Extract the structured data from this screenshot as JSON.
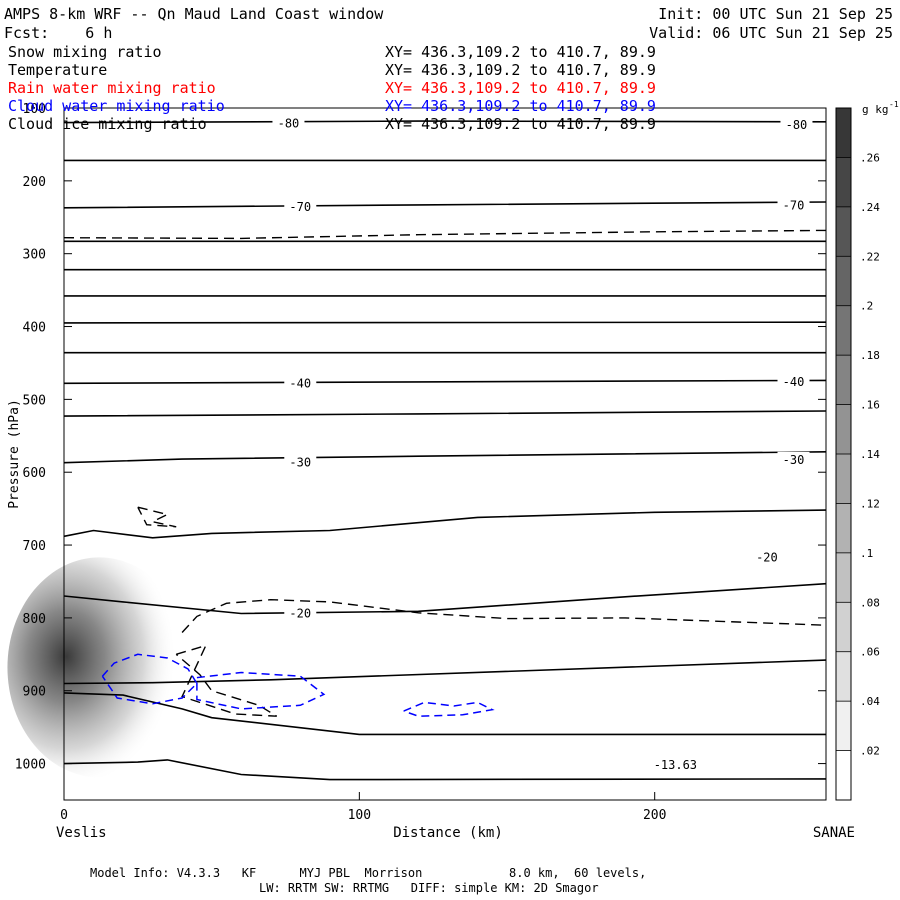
{
  "header": {
    "title": "AMPS 8-km WRF -- Qn Maud Land Coast window",
    "init": "Init: 00 UTC Sun 21 Sep 25",
    "fcst": "Fcst:    6 h",
    "valid": "Valid: 06 UTC Sun 21 Sep 25"
  },
  "fields": [
    {
      "name": "Snow mixing ratio",
      "xy": "XY= 436.3,109.2 to 410.7, 89.9",
      "color": "#000000"
    },
    {
      "name": "Temperature",
      "xy": "XY= 436.3,109.2 to 410.7, 89.9",
      "color": "#000000"
    },
    {
      "name": "Rain water mixing ratio",
      "xy": "XY= 436.3,109.2 to 410.7, 89.9",
      "color": "#ff0000"
    },
    {
      "name": "Cloud water mixing ratio",
      "xy": "XY= 436.3,109.2 to 410.7, 89.9",
      "color": "#0000ff"
    },
    {
      "name": "Cloud ice mixing ratio",
      "xy": "XY= 436.3,109.2 to 410.7, 89.9",
      "color": "#000000"
    }
  ],
  "footer": {
    "line1": "Model Info: V4.3.3   KF      MYJ PBL  Morrison            8.0 km,  60 levels,",
    "line2": "LW: RRTM SW: RRTMG   DIFF: simple KM: 2D Smagor"
  },
  "chart_data": {
    "type": "heatmap",
    "xlabel": "Distance (km)",
    "ylabel": "Pressure (hPa)",
    "xlim": [
      0,
      258
    ],
    "ylim": [
      1050,
      100
    ],
    "x_ticks": [
      "0",
      "100",
      "200"
    ],
    "x_tick_values": [
      0,
      100,
      200
    ],
    "y_ticks": [
      "100",
      "200",
      "300",
      "400",
      "500",
      "600",
      "700",
      "800",
      "900",
      "1000"
    ],
    "y_tick_values": [
      100,
      200,
      300,
      400,
      500,
      600,
      700,
      800,
      900,
      1000
    ],
    "left_endpoint": "Veslis",
    "right_endpoint": "SANAE",
    "colorbar": {
      "unit": "g kg",
      "unit_exp": "-1",
      "range": [
        0,
        0.28
      ],
      "tick_labels": [
        ".02",
        ".04",
        ".06",
        ".08",
        ".1",
        ".12",
        ".14",
        ".16",
        ".18",
        ".2",
        ".22",
        ".24",
        ".26"
      ],
      "tick_values": [
        0.02,
        0.04,
        0.06,
        0.08,
        0.1,
        0.12,
        0.14,
        0.16,
        0.18,
        0.2,
        0.22,
        0.24,
        0.26
      ]
    },
    "temperature_contour_labels": [
      {
        "text": "-80",
        "x": 76,
        "p": 121
      },
      {
        "text": "-80",
        "x": 248,
        "p": 123
      },
      {
        "text": "-70",
        "x": 80,
        "p": 236
      },
      {
        "text": "-70",
        "x": 247,
        "p": 234
      },
      {
        "text": "-40",
        "x": 80,
        "p": 478
      },
      {
        "text": "-40",
        "x": 247,
        "p": 476
      },
      {
        "text": "-30",
        "x": 80,
        "p": 587
      },
      {
        "text": "-30",
        "x": 247,
        "p": 583
      },
      {
        "text": "-20",
        "x": 80,
        "p": 794
      },
      {
        "text": "-20",
        "x": 238,
        "p": 717
      },
      {
        "text": "-13.63",
        "x": 207,
        "p": 1002
      }
    ]
  }
}
